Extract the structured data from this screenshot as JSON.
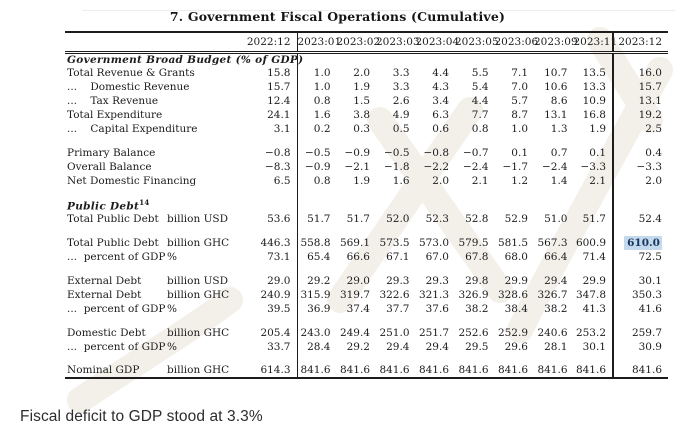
{
  "title": "7. Government Fiscal Operations (Cumulative)",
  "caption": "Fiscal deficit to GDP stood at 3.3%",
  "colors": {
    "rule": "#1c1c1c",
    "highlight_text": "#17365d",
    "highlight_bg": "#c5d9ed",
    "watermark": "#f3f0ea"
  },
  "table": {
    "columns": [
      "2022:12",
      "2023:01",
      "2023:02",
      "2023:03",
      "2023:04",
      "2023:05",
      "2023:06",
      "2023:09",
      "2023:11",
      "2023:12"
    ],
    "rows": [
      {
        "type": "section",
        "label": "Government Broad Budget (% of GDP)"
      },
      {
        "type": "data",
        "label": "Total Revenue & Grants",
        "unit": "",
        "values": [
          "15.8",
          "1.0",
          "2.0",
          "3.3",
          "4.4",
          "5.5",
          "7.1",
          "10.7",
          "13.5",
          "16.0"
        ]
      },
      {
        "type": "data",
        "label": "...    Domestic Revenue",
        "unit": "",
        "values": [
          "15.7",
          "1.0",
          "1.9",
          "3.3",
          "4.3",
          "5.4",
          "7.0",
          "10.6",
          "13.3",
          "15.7"
        ]
      },
      {
        "type": "data",
        "label": "...    Tax Revenue",
        "unit": "",
        "values": [
          "12.4",
          "0.8",
          "1.5",
          "2.6",
          "3.4",
          "4.4",
          "5.7",
          "8.6",
          "10.9",
          "13.1"
        ]
      },
      {
        "type": "data",
        "label": "Total Expenditure",
        "unit": "",
        "values": [
          "24.1",
          "1.6",
          "3.8",
          "4.9",
          "6.3",
          "7.7",
          "8.7",
          "13.1",
          "16.8",
          "19.2"
        ]
      },
      {
        "type": "data",
        "label": "...    Capital Expenditure",
        "unit": "",
        "values": [
          "3.1",
          "0.2",
          "0.3",
          "0.5",
          "0.6",
          "0.8",
          "1.0",
          "1.3",
          "1.9",
          "2.5"
        ]
      },
      {
        "type": "spacer"
      },
      {
        "type": "data",
        "label": "Primary Balance",
        "unit": "",
        "values": [
          "−0.8",
          "−0.5",
          "−0.9",
          "−0.5",
          "−0.8",
          "−0.7",
          "0.1",
          "0.7",
          "0.1",
          "0.4"
        ]
      },
      {
        "type": "data",
        "label": "Overall Balance",
        "unit": "",
        "values": [
          "−8.3",
          "−0.9",
          "−2.1",
          "−1.8",
          "−2.2",
          "−2.4",
          "−1.7",
          "−2.4",
          "−3.3",
          "−3.3"
        ]
      },
      {
        "type": "data",
        "label": "Net Domestic Financing",
        "unit": "",
        "values": [
          "6.5",
          "0.8",
          "1.9",
          "1.6",
          "2.0",
          "2.1",
          "1.2",
          "1.4",
          "2.1",
          "2.0"
        ]
      },
      {
        "type": "spacer"
      },
      {
        "type": "section",
        "label": "Public Debt",
        "sup": "14"
      },
      {
        "type": "data",
        "label": "Total Public Debt",
        "unit": "billion USD",
        "values": [
          "53.6",
          "51.7",
          "51.7",
          "52.0",
          "52.3",
          "52.8",
          "52.9",
          "51.0",
          "51.7",
          "52.4"
        ]
      },
      {
        "type": "spacer"
      },
      {
        "type": "data",
        "label": "Total Public Debt",
        "unit": "billion GHC",
        "highlight_last": true,
        "values": [
          "446.3",
          "558.8",
          "569.1",
          "573.5",
          "573.0",
          "579.5",
          "581.5",
          "567.3",
          "600.9",
          "610.0"
        ]
      },
      {
        "type": "data",
        "label": "...  percent of GDP",
        "unit": "%",
        "values": [
          "73.1",
          "65.4",
          "66.6",
          "67.1",
          "67.0",
          "67.8",
          "68.0",
          "66.4",
          "71.4",
          "72.5"
        ]
      },
      {
        "type": "spacer"
      },
      {
        "type": "data",
        "label": "External Debt",
        "unit": "billion USD",
        "values": [
          "29.0",
          "29.2",
          "29.0",
          "29.3",
          "29.3",
          "29.8",
          "29.9",
          "29.4",
          "29.9",
          "30.1"
        ]
      },
      {
        "type": "data",
        "label": "External Debt",
        "unit": "billion GHC",
        "values": [
          "240.9",
          "315.9",
          "319.7",
          "322.6",
          "321.3",
          "326.9",
          "328.6",
          "326.7",
          "347.8",
          "350.3"
        ]
      },
      {
        "type": "data",
        "label": "...  percent of GDP",
        "unit": "%",
        "values": [
          "39.5",
          "36.9",
          "37.4",
          "37.7",
          "37.6",
          "38.2",
          "38.4",
          "38.2",
          "41.3",
          "41.6"
        ]
      },
      {
        "type": "spacer"
      },
      {
        "type": "data",
        "label": "Domestic Debt",
        "unit": "billion GHC",
        "values": [
          "205.4",
          "243.0",
          "249.4",
          "251.0",
          "251.7",
          "252.6",
          "252.9",
          "240.6",
          "253.2",
          "259.7"
        ]
      },
      {
        "type": "data",
        "label": "...  percent of GDP",
        "unit": "%",
        "values": [
          "33.7",
          "28.4",
          "29.2",
          "29.4",
          "29.4",
          "29.5",
          "29.6",
          "28.1",
          "30.1",
          "30.9"
        ]
      },
      {
        "type": "spacer"
      },
      {
        "type": "data",
        "label": "Nominal GDP",
        "unit": "billion GHC",
        "values": [
          "614.3",
          "841.6",
          "841.6",
          "841.6",
          "841.6",
          "841.6",
          "841.6",
          "841.6",
          "841.6",
          "841.6"
        ]
      }
    ]
  }
}
